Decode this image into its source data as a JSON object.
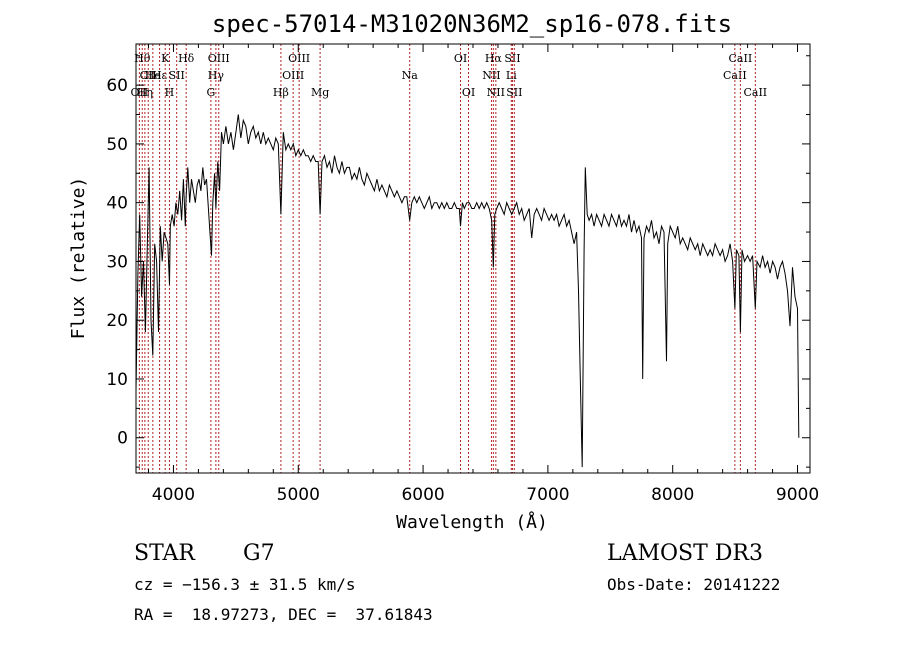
{
  "chart_data": {
    "type": "line",
    "title": "spec-57014-M31020N36M2_sp16-078.fits",
    "xlabel": "Wavelength (Å)",
    "ylabel": "Flux (relative)",
    "xlim": [
      3700,
      9100
    ],
    "ylim": [
      -6,
      67
    ],
    "x_ticks": [
      4000,
      5000,
      6000,
      7000,
      8000,
      9000
    ],
    "y_ticks": [
      0,
      10,
      20,
      30,
      40,
      50,
      60
    ],
    "line_color": "#000000",
    "marker_color": "#b22222",
    "series": [
      {
        "values": [
          [
            3700,
            8
          ],
          [
            3715,
            28
          ],
          [
            3730,
            38
          ],
          [
            3745,
            24
          ],
          [
            3760,
            30
          ],
          [
            3775,
            18
          ],
          [
            3790,
            32
          ],
          [
            3805,
            46
          ],
          [
            3820,
            20
          ],
          [
            3835,
            14
          ],
          [
            3850,
            33
          ],
          [
            3865,
            30
          ],
          [
            3880,
            18
          ],
          [
            3895,
            36
          ],
          [
            3910,
            30
          ],
          [
            3925,
            35
          ],
          [
            3940,
            34
          ],
          [
            3955,
            33
          ],
          [
            3968,
            26
          ],
          [
            3975,
            36
          ],
          [
            3990,
            38
          ],
          [
            4005,
            36
          ],
          [
            4020,
            40
          ],
          [
            4035,
            38
          ],
          [
            4050,
            42
          ],
          [
            4065,
            37
          ],
          [
            4080,
            44
          ],
          [
            4095,
            36
          ],
          [
            4101,
            41
          ],
          [
            4115,
            46
          ],
          [
            4130,
            40
          ],
          [
            4145,
            44
          ],
          [
            4160,
            42
          ],
          [
            4175,
            40
          ],
          [
            4190,
            43
          ],
          [
            4205,
            44
          ],
          [
            4220,
            42
          ],
          [
            4235,
            46
          ],
          [
            4250,
            43
          ],
          [
            4265,
            44
          ],
          [
            4280,
            39
          ],
          [
            4295,
            34
          ],
          [
            4305,
            31
          ],
          [
            4315,
            40
          ],
          [
            4330,
            45
          ],
          [
            4340,
            39
          ],
          [
            4355,
            47
          ],
          [
            4370,
            42
          ],
          [
            4385,
            52
          ],
          [
            4400,
            50
          ],
          [
            4420,
            53
          ],
          [
            4440,
            50
          ],
          [
            4460,
            52
          ],
          [
            4480,
            49
          ],
          [
            4500,
            52
          ],
          [
            4520,
            55
          ],
          [
            4540,
            51
          ],
          [
            4560,
            54
          ],
          [
            4580,
            53
          ],
          [
            4600,
            50
          ],
          [
            4620,
            52
          ],
          [
            4640,
            53
          ],
          [
            4660,
            51
          ],
          [
            4680,
            52
          ],
          [
            4700,
            50
          ],
          [
            4720,
            52
          ],
          [
            4740,
            50
          ],
          [
            4760,
            51
          ],
          [
            4780,
            50
          ],
          [
            4800,
            49
          ],
          [
            4820,
            51
          ],
          [
            4840,
            50
          ],
          [
            4861,
            38
          ],
          [
            4880,
            52
          ],
          [
            4900,
            49
          ],
          [
            4920,
            50
          ],
          [
            4940,
            49
          ],
          [
            4960,
            50
          ],
          [
            4980,
            48
          ],
          [
            5000,
            49
          ],
          [
            5020,
            48
          ],
          [
            5040,
            49
          ],
          [
            5060,
            48
          ],
          [
            5080,
            48
          ],
          [
            5100,
            47
          ],
          [
            5120,
            48
          ],
          [
            5140,
            47
          ],
          [
            5160,
            47
          ],
          [
            5175,
            38
          ],
          [
            5190,
            47
          ],
          [
            5210,
            48
          ],
          [
            5230,
            46
          ],
          [
            5250,
            47
          ],
          [
            5270,
            45
          ],
          [
            5290,
            48
          ],
          [
            5310,
            46
          ],
          [
            5330,
            45
          ],
          [
            5350,
            47
          ],
          [
            5370,
            45
          ],
          [
            5390,
            46
          ],
          [
            5410,
            46
          ],
          [
            5430,
            44
          ],
          [
            5450,
            45
          ],
          [
            5470,
            44
          ],
          [
            5490,
            46
          ],
          [
            5510,
            44
          ],
          [
            5530,
            43
          ],
          [
            5550,
            45
          ],
          [
            5570,
            44
          ],
          [
            5590,
            43
          ],
          [
            5610,
            42
          ],
          [
            5630,
            44
          ],
          [
            5650,
            42
          ],
          [
            5670,
            43
          ],
          [
            5690,
            42
          ],
          [
            5710,
            41
          ],
          [
            5730,
            43
          ],
          [
            5750,
            42
          ],
          [
            5770,
            41
          ],
          [
            5790,
            42
          ],
          [
            5810,
            41
          ],
          [
            5830,
            40
          ],
          [
            5850,
            41
          ],
          [
            5870,
            41
          ],
          [
            5893,
            37
          ],
          [
            5910,
            40
          ],
          [
            5930,
            41
          ],
          [
            5950,
            40
          ],
          [
            5970,
            41
          ],
          [
            5990,
            40
          ],
          [
            6010,
            39
          ],
          [
            6030,
            40
          ],
          [
            6050,
            41
          ],
          [
            6070,
            39
          ],
          [
            6090,
            40
          ],
          [
            6110,
            40
          ],
          [
            6130,
            39
          ],
          [
            6150,
            40
          ],
          [
            6170,
            39
          ],
          [
            6190,
            40
          ],
          [
            6210,
            39
          ],
          [
            6230,
            39
          ],
          [
            6250,
            40
          ],
          [
            6270,
            39
          ],
          [
            6290,
            39
          ],
          [
            6300,
            36
          ],
          [
            6315,
            40
          ],
          [
            6330,
            39
          ],
          [
            6350,
            40
          ],
          [
            6370,
            40
          ],
          [
            6390,
            39
          ],
          [
            6410,
            39
          ],
          [
            6430,
            40
          ],
          [
            6450,
            39
          ],
          [
            6470,
            40
          ],
          [
            6490,
            39
          ],
          [
            6510,
            40
          ],
          [
            6530,
            39
          ],
          [
            6550,
            37
          ],
          [
            6563,
            29
          ],
          [
            6575,
            38
          ],
          [
            6590,
            39
          ],
          [
            6610,
            40
          ],
          [
            6630,
            39
          ],
          [
            6650,
            38
          ],
          [
            6670,
            40
          ],
          [
            6690,
            39
          ],
          [
            6710,
            38
          ],
          [
            6730,
            39
          ],
          [
            6750,
            40
          ],
          [
            6770,
            38
          ],
          [
            6790,
            39
          ],
          [
            6810,
            37
          ],
          [
            6830,
            38
          ],
          [
            6850,
            39
          ],
          [
            6870,
            34
          ],
          [
            6890,
            38
          ],
          [
            6910,
            39
          ],
          [
            6930,
            38
          ],
          [
            6950,
            37
          ],
          [
            6970,
            39
          ],
          [
            6990,
            38
          ],
          [
            7010,
            37
          ],
          [
            7030,
            38
          ],
          [
            7050,
            37
          ],
          [
            7070,
            38
          ],
          [
            7090,
            36
          ],
          [
            7110,
            37
          ],
          [
            7130,
            38
          ],
          [
            7150,
            36
          ],
          [
            7170,
            37
          ],
          [
            7190,
            35
          ],
          [
            7210,
            33
          ],
          [
            7230,
            35
          ],
          [
            7245,
            25
          ],
          [
            7260,
            10
          ],
          [
            7275,
            -5
          ],
          [
            7290,
            32
          ],
          [
            7300,
            46
          ],
          [
            7315,
            38
          ],
          [
            7330,
            37
          ],
          [
            7350,
            38
          ],
          [
            7370,
            36
          ],
          [
            7390,
            38
          ],
          [
            7410,
            37
          ],
          [
            7430,
            36
          ],
          [
            7450,
            38
          ],
          [
            7470,
            37
          ],
          [
            7490,
            36
          ],
          [
            7510,
            38
          ],
          [
            7530,
            37
          ],
          [
            7550,
            36
          ],
          [
            7570,
            38
          ],
          [
            7590,
            36
          ],
          [
            7610,
            37
          ],
          [
            7630,
            36
          ],
          [
            7650,
            38
          ],
          [
            7670,
            35
          ],
          [
            7690,
            37
          ],
          [
            7710,
            35
          ],
          [
            7730,
            36
          ],
          [
            7750,
            34
          ],
          [
            7760,
            10
          ],
          [
            7770,
            34
          ],
          [
            7790,
            36
          ],
          [
            7810,
            35
          ],
          [
            7830,
            37
          ],
          [
            7850,
            34
          ],
          [
            7870,
            35
          ],
          [
            7890,
            33
          ],
          [
            7910,
            36
          ],
          [
            7930,
            35
          ],
          [
            7950,
            13
          ],
          [
            7960,
            33
          ],
          [
            7980,
            36
          ],
          [
            8000,
            35
          ],
          [
            8020,
            34
          ],
          [
            8040,
            36
          ],
          [
            8060,
            33
          ],
          [
            8080,
            34
          ],
          [
            8100,
            33
          ],
          [
            8120,
            32
          ],
          [
            8140,
            34
          ],
          [
            8160,
            33
          ],
          [
            8180,
            32
          ],
          [
            8200,
            33
          ],
          [
            8220,
            31
          ],
          [
            8240,
            33
          ],
          [
            8260,
            32
          ],
          [
            8280,
            31
          ],
          [
            8300,
            32
          ],
          [
            8320,
            31
          ],
          [
            8340,
            33
          ],
          [
            8360,
            32
          ],
          [
            8380,
            31
          ],
          [
            8400,
            32
          ],
          [
            8420,
            30
          ],
          [
            8440,
            31
          ],
          [
            8460,
            33
          ],
          [
            8480,
            30
          ],
          [
            8498,
            22
          ],
          [
            8510,
            32
          ],
          [
            8530,
            31
          ],
          [
            8542,
            18
          ],
          [
            8555,
            32
          ],
          [
            8575,
            30
          ],
          [
            8600,
            31
          ],
          [
            8620,
            30
          ],
          [
            8640,
            31
          ],
          [
            8662,
            22
          ],
          [
            8675,
            30
          ],
          [
            8700,
            29
          ],
          [
            8720,
            31
          ],
          [
            8740,
            29
          ],
          [
            8760,
            30
          ],
          [
            8780,
            28
          ],
          [
            8800,
            30
          ],
          [
            8820,
            29
          ],
          [
            8840,
            27
          ],
          [
            8860,
            29
          ],
          [
            8880,
            30
          ],
          [
            8900,
            28
          ],
          [
            8920,
            25
          ],
          [
            8940,
            19
          ],
          [
            8960,
            29
          ],
          [
            8980,
            24
          ],
          [
            9000,
            22
          ],
          [
            9010,
            0
          ]
        ]
      }
    ],
    "lines": [
      {
        "w": 3727,
        "label": "OII",
        "row": 3
      },
      {
        "w": 3750,
        "label": "Hθ",
        "row": 1
      },
      {
        "w": 3771,
        "label": "Hη",
        "row": 3
      },
      {
        "w": 3798,
        "label": "CII",
        "row": 2
      },
      {
        "w": 3835,
        "label": "He",
        "row": 2
      },
      {
        "w": 3889,
        "label": "Hε",
        "row": 2
      },
      {
        "w": 3934,
        "label": "K",
        "row": 1
      },
      {
        "w": 3968,
        "label": "H",
        "row": 3
      },
      {
        "w": 4026,
        "label": "SII",
        "row": 2
      },
      {
        "w": 4102,
        "label": "Hδ",
        "row": 1
      },
      {
        "w": 4300,
        "label": "G",
        "row": 3
      },
      {
        "w": 4340,
        "label": "Hγ",
        "row": 2
      },
      {
        "w": 4363,
        "label": "OIII",
        "row": 1
      },
      {
        "w": 4861,
        "label": "Hβ",
        "row": 3
      },
      {
        "w": 4959,
        "label": "OIII",
        "row": 2
      },
      {
        "w": 5007,
        "label": "OIII",
        "row": 1
      },
      {
        "w": 5175,
        "label": "Mg",
        "row": 3
      },
      {
        "w": 5893,
        "label": "Na",
        "row": 2
      },
      {
        "w": 6300,
        "label": "OI",
        "row": 1
      },
      {
        "w": 6364,
        "label": "OI",
        "row": 3
      },
      {
        "w": 6548,
        "label": "NII",
        "row": 2
      },
      {
        "w": 6563,
        "label": "Hα",
        "row": 1
      },
      {
        "w": 6583,
        "label": "NII",
        "row": 3
      },
      {
        "w": 6707,
        "label": "Li",
        "row": 2
      },
      {
        "w": 6716,
        "label": "SII",
        "row": 1
      },
      {
        "w": 6731,
        "label": "SII",
        "row": 3
      },
      {
        "w": 8498,
        "label": "CaII",
        "row": 2
      },
      {
        "w": 8542,
        "label": "CaII",
        "row": 1
      },
      {
        "w": 8662,
        "label": "CaII",
        "row": 3
      }
    ]
  },
  "info": {
    "class": "STAR",
    "subclass": "G7",
    "survey": "LAMOST DR3",
    "cz": "cz = −156.3 ± 31.5 km/s",
    "obs_date": "Obs-Date: 20141222",
    "radec": "RA =  18.97273, DEC =  37.61843"
  }
}
